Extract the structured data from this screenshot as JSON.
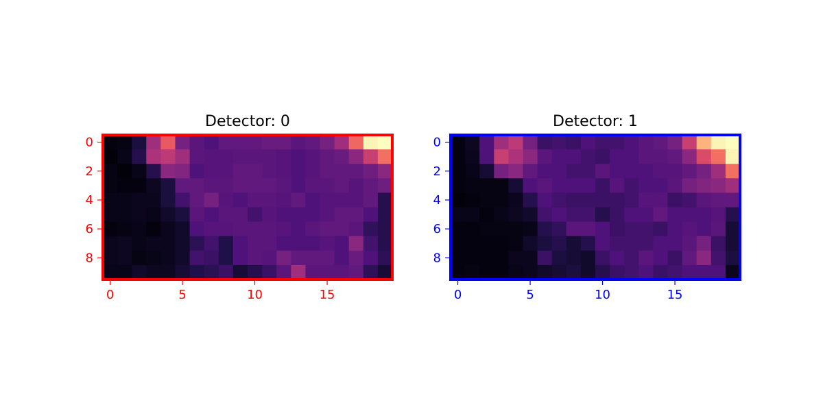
{
  "chart_data": [
    {
      "type": "heatmap",
      "title": "Detector: 0",
      "colormap": "magma",
      "accent_color": "#ff0000",
      "vmin": 0,
      "vmax": 1,
      "x_ticks": [
        0,
        5,
        10,
        15
      ],
      "y_ticks": [
        0,
        2,
        4,
        6,
        8
      ],
      "xlim": [
        -0.5,
        19.5
      ],
      "ylim": [
        9.5,
        -0.5
      ],
      "values": [
        [
          0.02,
          0.03,
          0.12,
          0.45,
          0.65,
          0.35,
          0.28,
          0.25,
          0.3,
          0.3,
          0.3,
          0.32,
          0.32,
          0.28,
          0.3,
          0.35,
          0.45,
          0.68,
          0.98,
          1.0
        ],
        [
          0.01,
          0.04,
          0.15,
          0.48,
          0.52,
          0.45,
          0.28,
          0.27,
          0.27,
          0.28,
          0.28,
          0.28,
          0.27,
          0.25,
          0.27,
          0.3,
          0.32,
          0.4,
          0.55,
          0.7
        ],
        [
          0.03,
          0.01,
          0.04,
          0.15,
          0.4,
          0.38,
          0.25,
          0.27,
          0.27,
          0.3,
          0.3,
          0.28,
          0.27,
          0.25,
          0.27,
          0.3,
          0.3,
          0.3,
          0.33,
          0.4
        ],
        [
          0.03,
          0.02,
          0.02,
          0.06,
          0.12,
          0.3,
          0.3,
          0.28,
          0.28,
          0.3,
          0.3,
          0.3,
          0.28,
          0.25,
          0.28,
          0.28,
          0.3,
          0.27,
          0.3,
          0.33
        ],
        [
          0.04,
          0.04,
          0.05,
          0.05,
          0.12,
          0.22,
          0.3,
          0.35,
          0.27,
          0.25,
          0.28,
          0.28,
          0.27,
          0.3,
          0.25,
          0.27,
          0.27,
          0.27,
          0.3,
          0.15
        ],
        [
          0.04,
          0.04,
          0.05,
          0.04,
          0.08,
          0.12,
          0.28,
          0.25,
          0.28,
          0.28,
          0.22,
          0.27,
          0.25,
          0.25,
          0.25,
          0.27,
          0.3,
          0.3,
          0.25,
          0.15
        ],
        [
          0.02,
          0.03,
          0.04,
          0.02,
          0.05,
          0.08,
          0.25,
          0.27,
          0.27,
          0.28,
          0.28,
          0.28,
          0.27,
          0.25,
          0.28,
          0.3,
          0.3,
          0.28,
          0.18,
          0.15
        ],
        [
          0.05,
          0.06,
          0.04,
          0.05,
          0.05,
          0.08,
          0.17,
          0.22,
          0.14,
          0.25,
          0.28,
          0.28,
          0.25,
          0.25,
          0.25,
          0.27,
          0.25,
          0.4,
          0.22,
          0.15
        ],
        [
          0.05,
          0.06,
          0.03,
          0.04,
          0.05,
          0.08,
          0.22,
          0.2,
          0.14,
          0.25,
          0.28,
          0.27,
          0.35,
          0.3,
          0.3,
          0.3,
          0.25,
          0.32,
          0.25,
          0.17
        ],
        [
          0.04,
          0.04,
          0.08,
          0.06,
          0.06,
          0.1,
          0.14,
          0.16,
          0.2,
          0.1,
          0.15,
          0.2,
          0.28,
          0.45,
          0.28,
          0.28,
          0.28,
          0.3,
          0.17,
          0.1
        ]
      ]
    },
    {
      "type": "heatmap",
      "title": "Detector: 1",
      "colormap": "magma",
      "accent_color": "#0000ff",
      "vmin": 0,
      "vmax": 1,
      "x_ticks": [
        0,
        5,
        10,
        15
      ],
      "y_ticks": [
        0,
        2,
        4,
        6,
        8
      ],
      "xlim": [
        -0.5,
        19.5
      ],
      "ylim": [
        9.5,
        -0.5
      ],
      "values": [
        [
          0.02,
          0.06,
          0.25,
          0.45,
          0.52,
          0.35,
          0.2,
          0.22,
          0.2,
          0.25,
          0.22,
          0.22,
          0.25,
          0.28,
          0.3,
          0.35,
          0.55,
          0.85,
          0.98,
          1.0
        ],
        [
          0.02,
          0.05,
          0.25,
          0.55,
          0.48,
          0.4,
          0.28,
          0.25,
          0.25,
          0.22,
          0.2,
          0.25,
          0.25,
          0.28,
          0.28,
          0.3,
          0.4,
          0.6,
          0.7,
          0.98
        ],
        [
          0.02,
          0.04,
          0.1,
          0.35,
          0.4,
          0.3,
          0.25,
          0.25,
          0.22,
          0.22,
          0.28,
          0.25,
          0.25,
          0.25,
          0.27,
          0.27,
          0.3,
          0.35,
          0.45,
          0.7
        ],
        [
          0.02,
          0.03,
          0.03,
          0.03,
          0.1,
          0.25,
          0.28,
          0.25,
          0.25,
          0.25,
          0.2,
          0.27,
          0.22,
          0.25,
          0.25,
          0.28,
          0.35,
          0.38,
          0.4,
          0.45
        ],
        [
          0.01,
          0.02,
          0.03,
          0.03,
          0.05,
          0.15,
          0.25,
          0.22,
          0.2,
          0.2,
          0.2,
          0.2,
          0.22,
          0.27,
          0.27,
          0.2,
          0.22,
          0.28,
          0.3,
          0.3
        ],
        [
          0.04,
          0.04,
          0.02,
          0.04,
          0.06,
          0.08,
          0.22,
          0.25,
          0.22,
          0.22,
          0.15,
          0.2,
          0.25,
          0.25,
          0.3,
          0.25,
          0.25,
          0.25,
          0.27,
          0.15
        ],
        [
          0.02,
          0.02,
          0.03,
          0.03,
          0.03,
          0.04,
          0.15,
          0.18,
          0.28,
          0.28,
          0.25,
          0.2,
          0.22,
          0.22,
          0.2,
          0.25,
          0.27,
          0.25,
          0.28,
          0.1
        ],
        [
          0.02,
          0.02,
          0.02,
          0.02,
          0.03,
          0.08,
          0.12,
          0.15,
          0.1,
          0.15,
          0.25,
          0.22,
          0.22,
          0.22,
          0.25,
          0.25,
          0.28,
          0.35,
          0.2,
          0.1
        ],
        [
          0.02,
          0.02,
          0.02,
          0.02,
          0.05,
          0.05,
          0.2,
          0.12,
          0.1,
          0.08,
          0.2,
          0.25,
          0.22,
          0.28,
          0.25,
          0.2,
          0.3,
          0.4,
          0.22,
          0.12
        ],
        [
          0.02,
          0.03,
          0.02,
          0.02,
          0.04,
          0.05,
          0.08,
          0.1,
          0.12,
          0.08,
          0.15,
          0.2,
          0.22,
          0.25,
          0.2,
          0.22,
          0.25,
          0.25,
          0.25,
          0.05
        ]
      ]
    }
  ]
}
